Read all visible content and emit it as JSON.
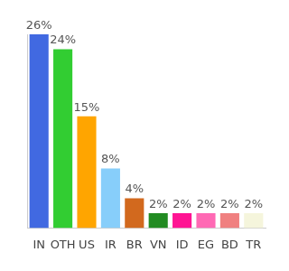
{
  "chart_data": {
    "type": "bar",
    "categories": [
      "IN",
      "OTH",
      "US",
      "IR",
      "BR",
      "VN",
      "ID",
      "EG",
      "BD",
      "TR"
    ],
    "values": [
      26,
      24,
      15,
      8,
      4,
      2,
      2,
      2,
      2,
      2
    ],
    "value_labels": [
      "26%",
      "24%",
      "15%",
      "8%",
      "4%",
      "2%",
      "2%",
      "2%",
      "2%",
      "2%"
    ],
    "colors": [
      "#4169e1",
      "#32cd32",
      "#ffa500",
      "#87cefa",
      "#d2691e",
      "#228b22",
      "#ff1493",
      "#ff69b4",
      "#f08080",
      "#f5f5dc"
    ],
    "ylim": [
      0,
      26
    ],
    "grid": false,
    "data_labels": true,
    "tick_labels": "x"
  }
}
